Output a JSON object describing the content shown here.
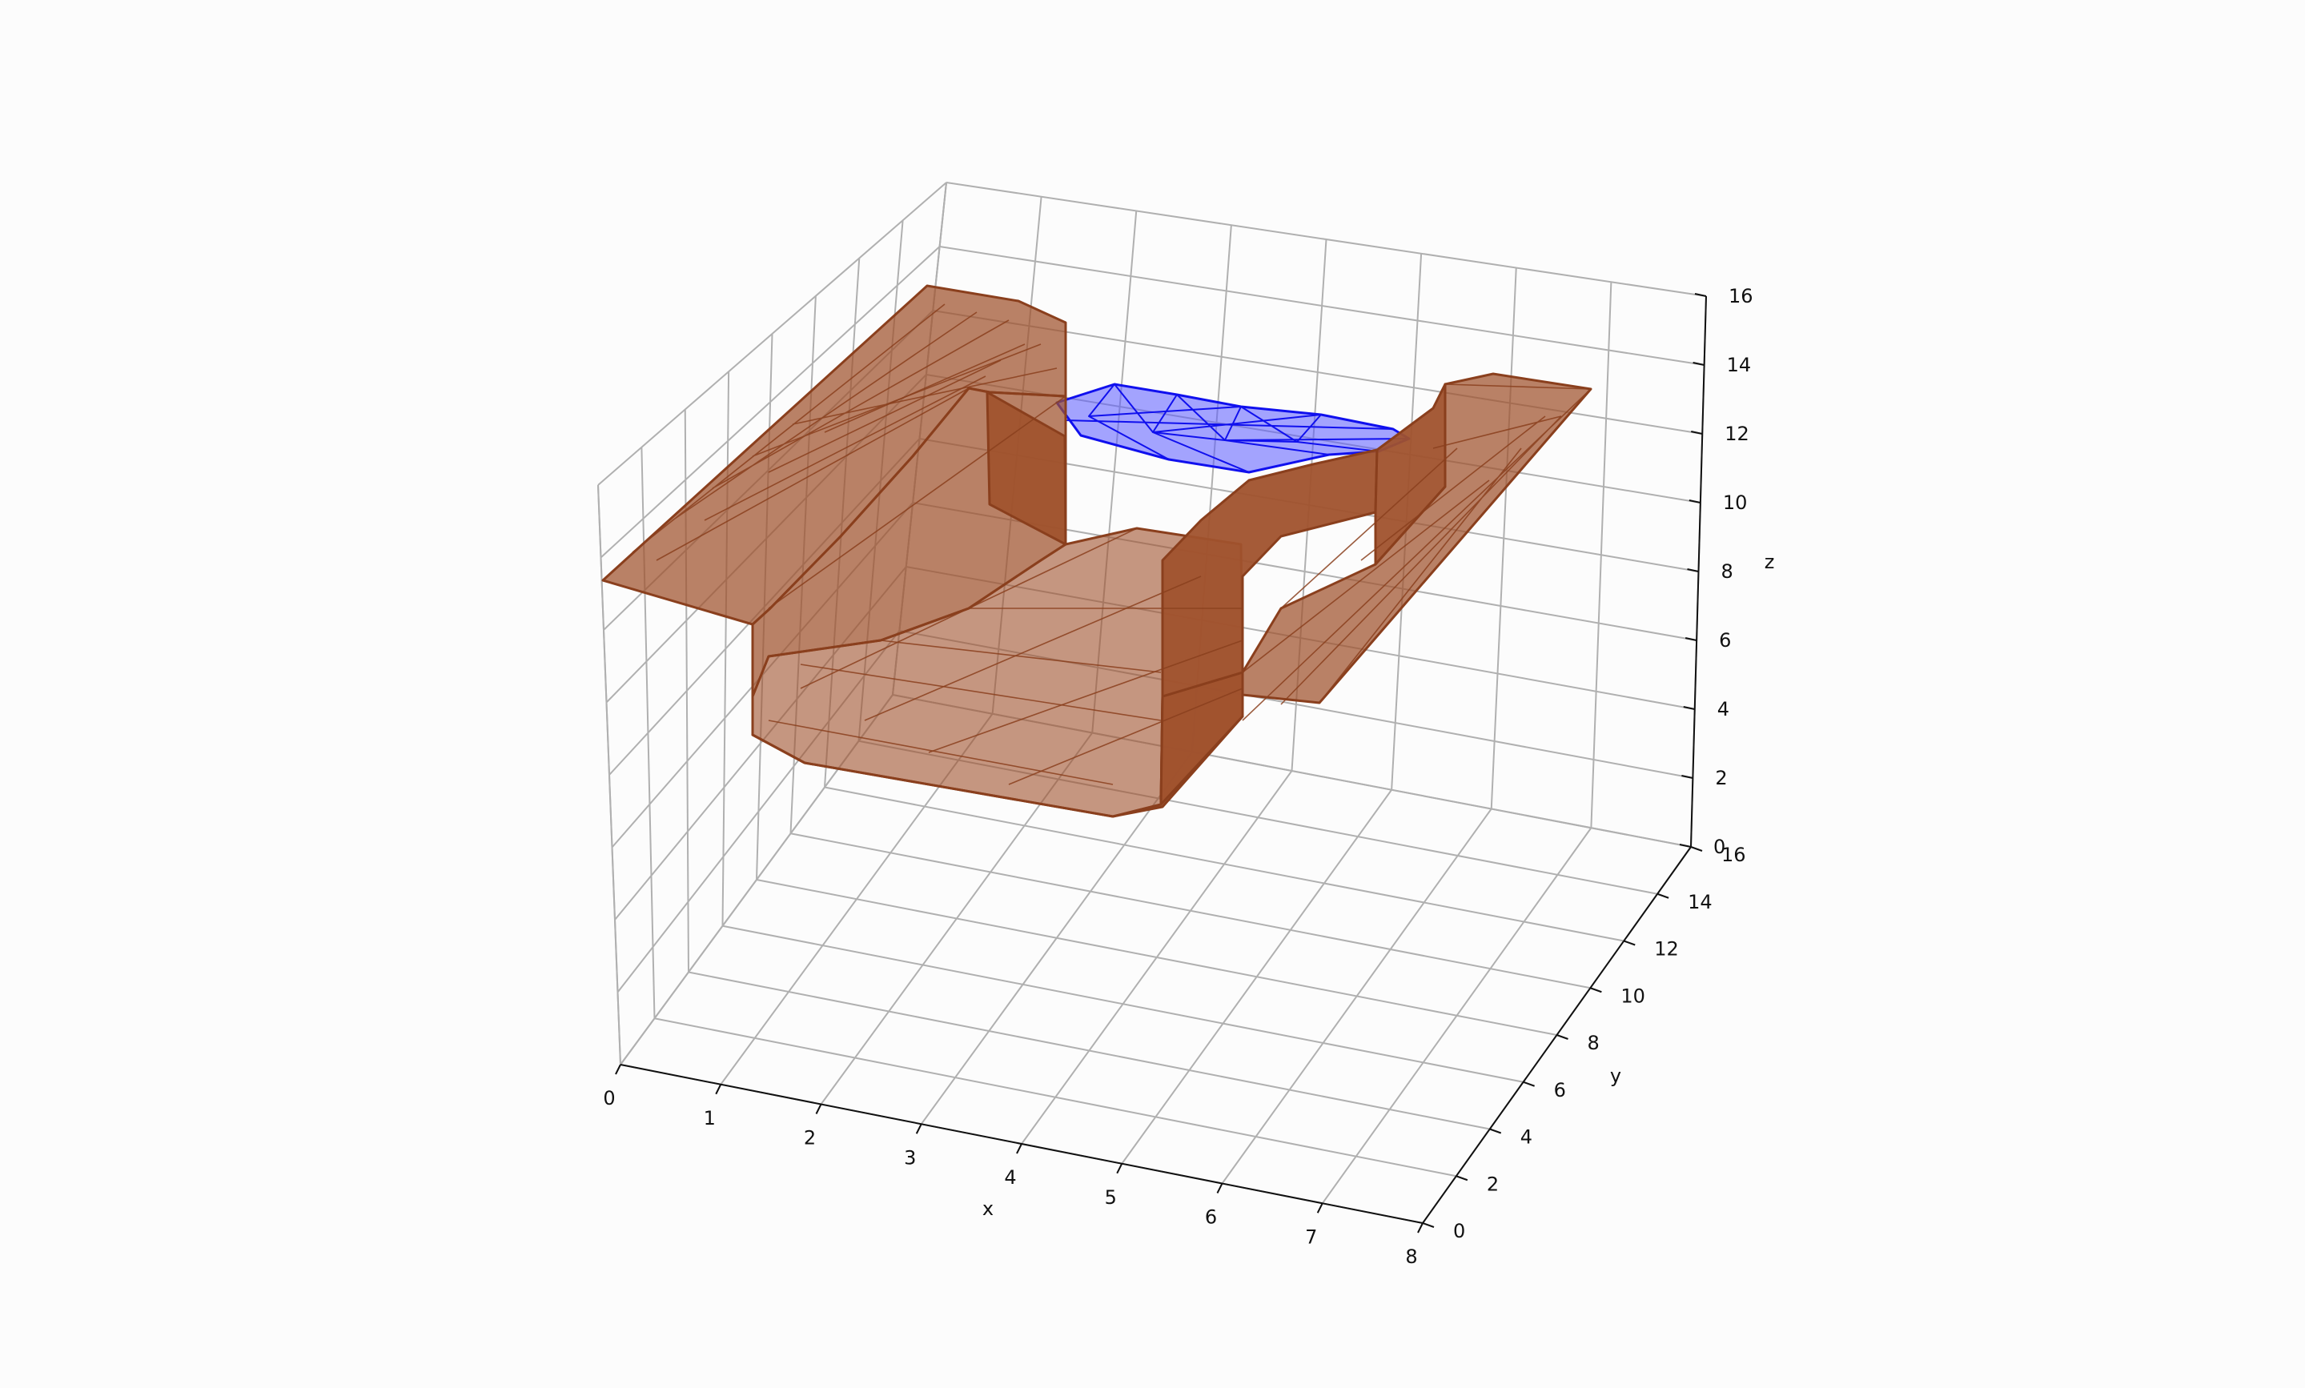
{
  "chart_data": {
    "type": "surface3d",
    "title": "",
    "xlabel": "x",
    "ylabel": "y",
    "zlabel": "z",
    "xlim": [
      0,
      8
    ],
    "ylim": [
      0,
      16
    ],
    "zlim": [
      0,
      16
    ],
    "x_ticks": [
      "0",
      "1",
      "2",
      "3",
      "4",
      "5",
      "6",
      "7",
      "8"
    ],
    "y_ticks": [
      "0",
      "2",
      "4",
      "6",
      "8",
      "10",
      "12",
      "14",
      "16"
    ],
    "z_ticks": [
      "0",
      "2",
      "4",
      "6",
      "8",
      "10",
      "12",
      "14",
      "16"
    ],
    "grid": true,
    "series": [
      {
        "kind": "triangulated-surface",
        "color": "#0000ff",
        "fill_alpha": 0.55,
        "description_points": [
          [
            4.0,
            12.5,
            12.0
          ],
          [
            5.0,
            14.0,
            12.0
          ],
          [
            6.5,
            13.5,
            12.0
          ],
          [
            7.5,
            12.0,
            12.0
          ]
        ]
      },
      {
        "kind": "triangulated-surface",
        "color": "#a0522d",
        "fill_alpha": 0.75,
        "description_points": [
          [
            0.0,
            8.0,
            8.0
          ],
          [
            1.2,
            16.0,
            16.0
          ],
          [
            8.0,
            9.0,
            8.0
          ],
          [
            8.0,
            16.0,
            16.0
          ],
          [
            4.0,
            5.0,
            3.0
          ]
        ]
      }
    ]
  }
}
